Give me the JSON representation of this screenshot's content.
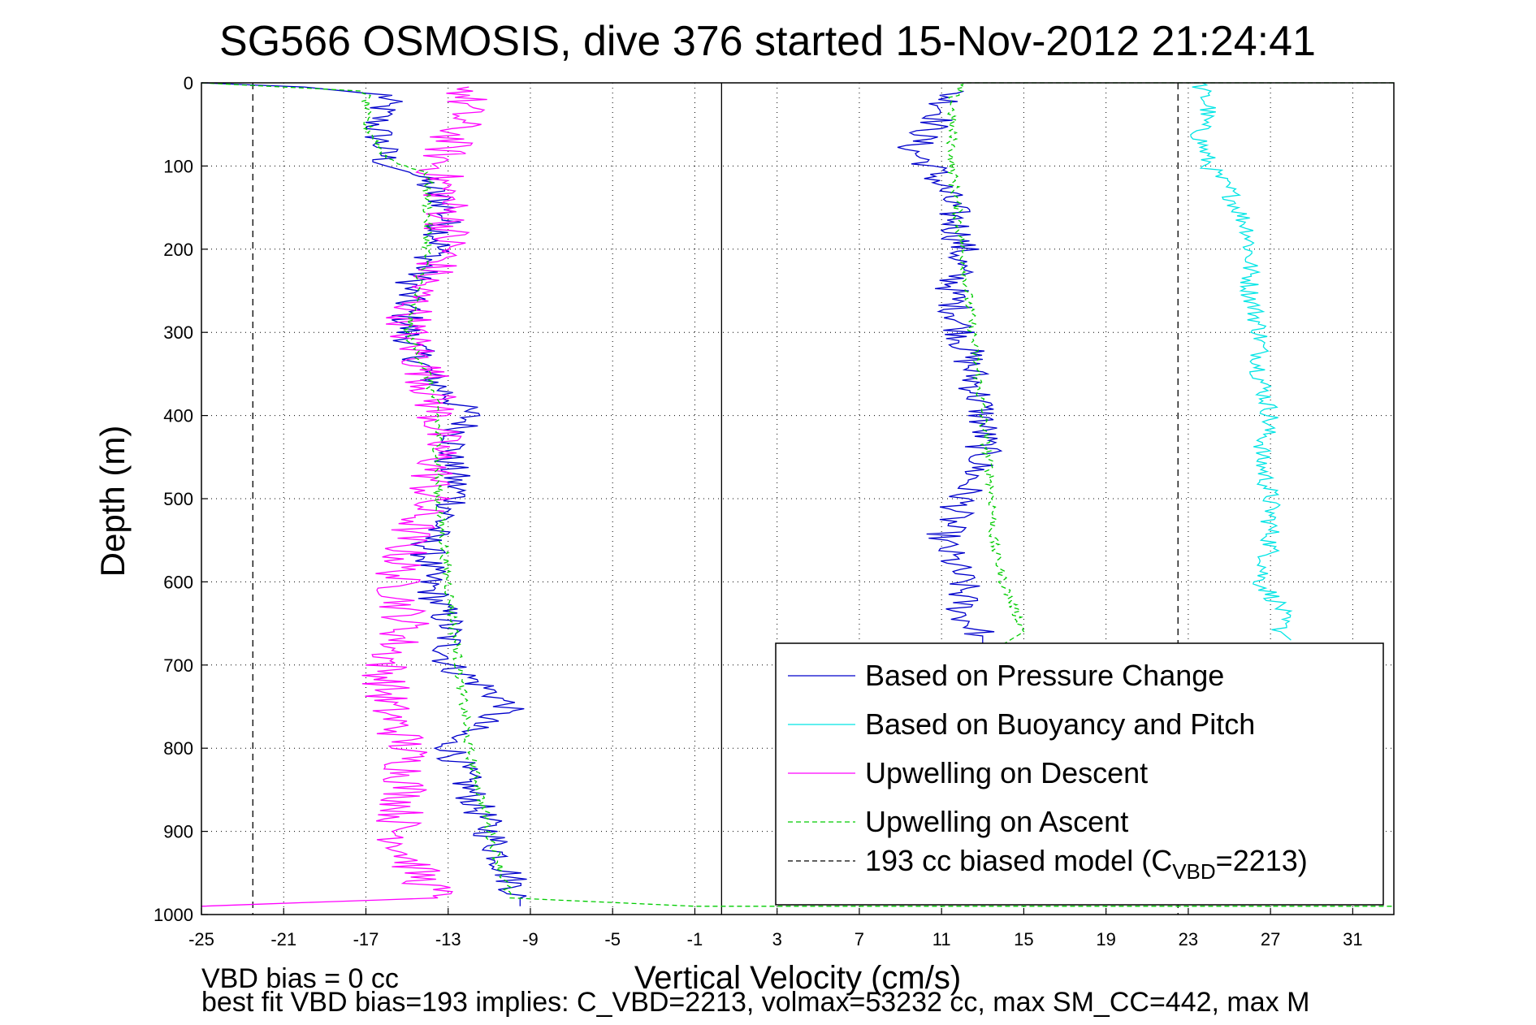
{
  "chart_data": {
    "type": "line",
    "title": "SG566 OSMOSIS, dive 376 started 15-Nov-2012 21:24:41",
    "xlabel": "Vertical Velocity (cm/s)",
    "ylabel": "Depth (m)",
    "xlim": [
      -25,
      33
    ],
    "ylim": [
      1000,
      0
    ],
    "y_reversed": true,
    "grid": true,
    "x_ticks": [
      -25,
      -21,
      -17,
      -13,
      -9,
      -5,
      -1,
      3,
      7,
      11,
      15,
      19,
      23,
      27,
      31
    ],
    "y_ticks": [
      0,
      100,
      200,
      300,
      400,
      500,
      600,
      700,
      800,
      900,
      1000
    ],
    "legend_position": "bottom-right",
    "legend": [
      {
        "label": "Based on Pressure Change",
        "color": "#0000cc",
        "style": "solid"
      },
      {
        "label": "Based on Buoyancy and Pitch",
        "color": "#00e5e5",
        "style": "solid"
      },
      {
        "label": "Upwelling on Descent",
        "color": "#ff00ff",
        "style": "solid"
      },
      {
        "label": "Upwelling on Ascent",
        "color": "#00cc00",
        "style": "dashed"
      },
      {
        "label_main": "193 cc biased model (C",
        "label_sub": "VBD",
        "label_end": "=2213)",
        "color": "#000000",
        "style": "dashed"
      }
    ],
    "reference_lines": [
      {
        "x": -22.5,
        "style": "dashed",
        "color": "#000000"
      },
      {
        "x": 0.3,
        "style": "solid",
        "color": "#000000"
      },
      {
        "x": 22.5,
        "style": "dashed",
        "color": "#000000"
      }
    ],
    "series": [
      {
        "key": "pressure_descent",
        "color": "#0000cc",
        "style": "solid",
        "noise": 0.9,
        "points": [
          [
            -25,
            0
          ],
          [
            -20,
            5
          ],
          [
            -16,
            15
          ],
          [
            -16.5,
            50
          ],
          [
            -16,
            100
          ],
          [
            -14.5,
            110
          ],
          [
            -13,
            150
          ],
          [
            -13.5,
            200
          ],
          [
            -15,
            250
          ],
          [
            -15,
            300
          ],
          [
            -14,
            350
          ],
          [
            -12,
            400
          ],
          [
            -13,
            450
          ],
          [
            -12.5,
            500
          ],
          [
            -14,
            550
          ],
          [
            -14,
            600
          ],
          [
            -13,
            650
          ],
          [
            -13,
            700
          ],
          [
            -11,
            730
          ],
          [
            -10,
            750
          ],
          [
            -13,
            790
          ],
          [
            -12,
            850
          ],
          [
            -11,
            900
          ],
          [
            -9.5,
            980
          ],
          [
            -9.5,
            990
          ]
        ]
      },
      {
        "key": "pressure_ascent",
        "color": "#0000cc",
        "style": "solid",
        "noise": 0.9,
        "points": [
          [
            11.5,
            10
          ],
          [
            11,
            40
          ],
          [
            9.5,
            80
          ],
          [
            10.5,
            100
          ],
          [
            11.5,
            150
          ],
          [
            12,
            200
          ],
          [
            11.5,
            250
          ],
          [
            12,
            300
          ],
          [
            12.5,
            350
          ],
          [
            13,
            400
          ],
          [
            13,
            450
          ],
          [
            12,
            500
          ],
          [
            11,
            550
          ],
          [
            12,
            600
          ],
          [
            12,
            640
          ],
          [
            13,
            665
          ],
          [
            13,
            675
          ]
        ]
      },
      {
        "key": "buoyancy_descent",
        "color": "#00e5e5",
        "style": "solid",
        "noise": 0.5,
        "points": [
          [
            23.5,
            0
          ],
          [
            24,
            30
          ],
          [
            23.5,
            60
          ],
          [
            24,
            100
          ],
          [
            25,
            130
          ],
          [
            26,
            180
          ],
          [
            26,
            250
          ],
          [
            26.5,
            300
          ],
          [
            26.5,
            350
          ],
          [
            27,
            400
          ],
          [
            26.5,
            450
          ],
          [
            27,
            500
          ],
          [
            27,
            560
          ],
          [
            26.5,
            600
          ],
          [
            27.5,
            630
          ],
          [
            27.5,
            660
          ],
          [
            28,
            670
          ]
        ]
      },
      {
        "key": "upwelling_descent",
        "color": "#ff00ff",
        "style": "solid",
        "noise": 1.2,
        "points": [
          [
            -12,
            5
          ],
          [
            -12.5,
            50
          ],
          [
            -13.5,
            100
          ],
          [
            -13,
            150
          ],
          [
            -13,
            200
          ],
          [
            -14.5,
            250
          ],
          [
            -15,
            300
          ],
          [
            -14,
            350
          ],
          [
            -13.5,
            400
          ],
          [
            -13.5,
            450
          ],
          [
            -14,
            500
          ],
          [
            -15,
            550
          ],
          [
            -15.5,
            600
          ],
          [
            -15,
            650
          ],
          [
            -16,
            700
          ],
          [
            -16,
            750
          ],
          [
            -15,
            800
          ],
          [
            -15,
            850
          ],
          [
            -15.5,
            900
          ],
          [
            -14.5,
            950
          ],
          [
            -13.5,
            980
          ],
          [
            -25,
            990
          ]
        ]
      },
      {
        "key": "upwelling_ascent",
        "color": "#00cc00",
        "style": "dashed",
        "noise": 0.25,
        "points": [
          [
            -25,
            0
          ],
          [
            -17,
            10
          ],
          [
            -17,
            50
          ],
          [
            -16,
            90
          ],
          [
            -14,
            110
          ],
          [
            -14,
            200
          ],
          [
            -15,
            300
          ],
          [
            -14,
            350
          ],
          [
            -13.5,
            400
          ],
          [
            -13.5,
            500
          ],
          [
            -13,
            600
          ],
          [
            -12.5,
            700
          ],
          [
            -12,
            800
          ],
          [
            -11,
            900
          ],
          [
            -10,
            980
          ],
          [
            -1,
            990
          ],
          [
            33,
            990
          ]
        ]
      },
      {
        "key": "upwelling_ascent_2",
        "color": "#00cc00",
        "style": "dashed",
        "noise": 0.25,
        "points": [
          [
            33,
            0
          ],
          [
            12,
            0
          ],
          [
            11.5,
            20
          ],
          [
            11.5,
            100
          ],
          [
            12,
            200
          ],
          [
            12.5,
            300
          ],
          [
            13,
            400
          ],
          [
            13.5,
            500
          ],
          [
            13.5,
            550
          ],
          [
            14,
            600
          ],
          [
            15,
            660
          ],
          [
            14,
            675
          ]
        ]
      }
    ]
  },
  "footer": {
    "line1": "VBD bias = 0 cc",
    "line2": "best fit VBD bias=193 implies: C_VBD=2213, volmax=53232 cc, max SM_CC=442, max M"
  }
}
